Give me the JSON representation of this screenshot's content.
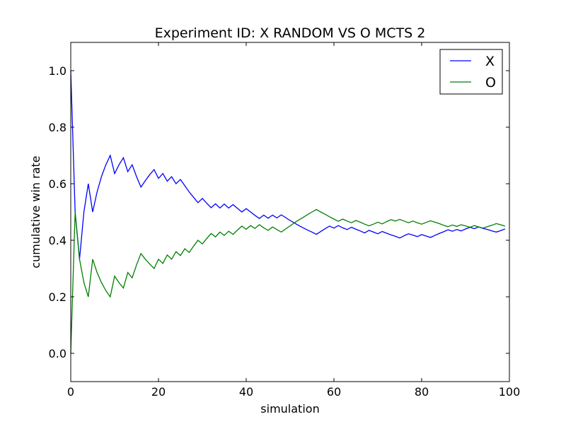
{
  "chart_data": {
    "type": "line",
    "title": "Experiment ID: X RANDOM VS O MCTS 2",
    "xlabel": "simulation",
    "ylabel": "cumulative win rate",
    "xlim": [
      0,
      100
    ],
    "ylim": [
      -0.1,
      1.1
    ],
    "xticks": [
      0,
      20,
      40,
      60,
      80,
      100
    ],
    "xtick_labels": [
      "0",
      "20",
      "40",
      "60",
      "80",
      "100"
    ],
    "yticks": [
      0.0,
      0.2,
      0.4,
      0.6,
      0.8,
      1.0
    ],
    "ytick_labels": [
      "0.0",
      "0.2",
      "0.4",
      "0.6",
      "0.8",
      "1.0"
    ],
    "grid": false,
    "legend_position": "top-right",
    "series": [
      {
        "name": "X",
        "color": "#0000ff",
        "x": [
          0,
          1,
          2,
          3,
          4,
          5,
          6,
          7,
          8,
          9,
          10,
          11,
          12,
          13,
          14,
          15,
          16,
          17,
          18,
          19,
          20,
          21,
          22,
          23,
          24,
          25,
          26,
          27,
          28,
          29,
          30,
          31,
          32,
          33,
          34,
          35,
          36,
          37,
          38,
          39,
          40,
          41,
          42,
          43,
          44,
          45,
          46,
          47,
          48,
          49,
          50,
          51,
          52,
          53,
          54,
          55,
          56,
          57,
          58,
          59,
          60,
          61,
          62,
          63,
          64,
          65,
          66,
          67,
          68,
          69,
          70,
          71,
          72,
          73,
          74,
          75,
          76,
          77,
          78,
          79,
          80,
          81,
          82,
          83,
          84,
          85,
          86,
          87,
          88,
          89,
          90,
          91,
          92,
          93,
          94,
          95,
          96,
          97,
          98,
          99
        ],
        "values": [
          1.0,
          0.5,
          0.333,
          0.5,
          0.6,
          0.5,
          0.571,
          0.625,
          0.667,
          0.7,
          0.636,
          0.667,
          0.692,
          0.643,
          0.667,
          0.625,
          0.588,
          0.611,
          0.632,
          0.65,
          0.619,
          0.636,
          0.609,
          0.625,
          0.6,
          0.615,
          0.593,
          0.571,
          0.552,
          0.533,
          0.548,
          0.531,
          0.515,
          0.529,
          0.514,
          0.528,
          0.514,
          0.526,
          0.513,
          0.5,
          0.512,
          0.5,
          0.488,
          0.477,
          0.489,
          0.478,
          0.489,
          0.479,
          0.49,
          0.48,
          0.47,
          0.461,
          0.452,
          0.444,
          0.436,
          0.429,
          0.421,
          0.431,
          0.441,
          0.45,
          0.443,
          0.452,
          0.444,
          0.438,
          0.446,
          0.439,
          0.433,
          0.426,
          0.435,
          0.429,
          0.423,
          0.431,
          0.425,
          0.419,
          0.414,
          0.408,
          0.416,
          0.423,
          0.418,
          0.413,
          0.42,
          0.415,
          0.41,
          0.417,
          0.424,
          0.43,
          0.437,
          0.432,
          0.438,
          0.433,
          0.44,
          0.446,
          0.441,
          0.447,
          0.442,
          0.438,
          0.433,
          0.429,
          0.434,
          0.44
        ]
      },
      {
        "name": "O",
        "color": "#008000",
        "x": [
          0,
          1,
          2,
          3,
          4,
          5,
          6,
          7,
          8,
          9,
          10,
          11,
          12,
          13,
          14,
          15,
          16,
          17,
          18,
          19,
          20,
          21,
          22,
          23,
          24,
          25,
          26,
          27,
          28,
          29,
          30,
          31,
          32,
          33,
          34,
          35,
          36,
          37,
          38,
          39,
          40,
          41,
          42,
          43,
          44,
          45,
          46,
          47,
          48,
          49,
          50,
          51,
          52,
          53,
          54,
          55,
          56,
          57,
          58,
          59,
          60,
          61,
          62,
          63,
          64,
          65,
          66,
          67,
          68,
          69,
          70,
          71,
          72,
          73,
          74,
          75,
          76,
          77,
          78,
          79,
          80,
          81,
          82,
          83,
          84,
          85,
          86,
          87,
          88,
          89,
          90,
          91,
          92,
          93,
          94,
          95,
          96,
          97,
          98,
          99
        ],
        "values": [
          0.0,
          0.5,
          0.333,
          0.25,
          0.2,
          0.333,
          0.286,
          0.25,
          0.222,
          0.2,
          0.273,
          0.25,
          0.231,
          0.286,
          0.267,
          0.313,
          0.353,
          0.333,
          0.316,
          0.3,
          0.333,
          0.318,
          0.348,
          0.333,
          0.36,
          0.346,
          0.37,
          0.357,
          0.379,
          0.4,
          0.387,
          0.406,
          0.424,
          0.412,
          0.429,
          0.417,
          0.432,
          0.421,
          0.436,
          0.45,
          0.439,
          0.452,
          0.442,
          0.455,
          0.444,
          0.435,
          0.447,
          0.438,
          0.429,
          0.44,
          0.451,
          0.462,
          0.472,
          0.481,
          0.491,
          0.5,
          0.509,
          0.5,
          0.492,
          0.483,
          0.475,
          0.467,
          0.475,
          0.468,
          0.462,
          0.47,
          0.464,
          0.457,
          0.451,
          0.457,
          0.464,
          0.458,
          0.466,
          0.473,
          0.468,
          0.474,
          0.468,
          0.462,
          0.468,
          0.462,
          0.457,
          0.463,
          0.469,
          0.464,
          0.459,
          0.453,
          0.448,
          0.454,
          0.449,
          0.455,
          0.451,
          0.446,
          0.452,
          0.447,
          0.443,
          0.448,
          0.453,
          0.459,
          0.455,
          0.45
        ]
      }
    ]
  }
}
